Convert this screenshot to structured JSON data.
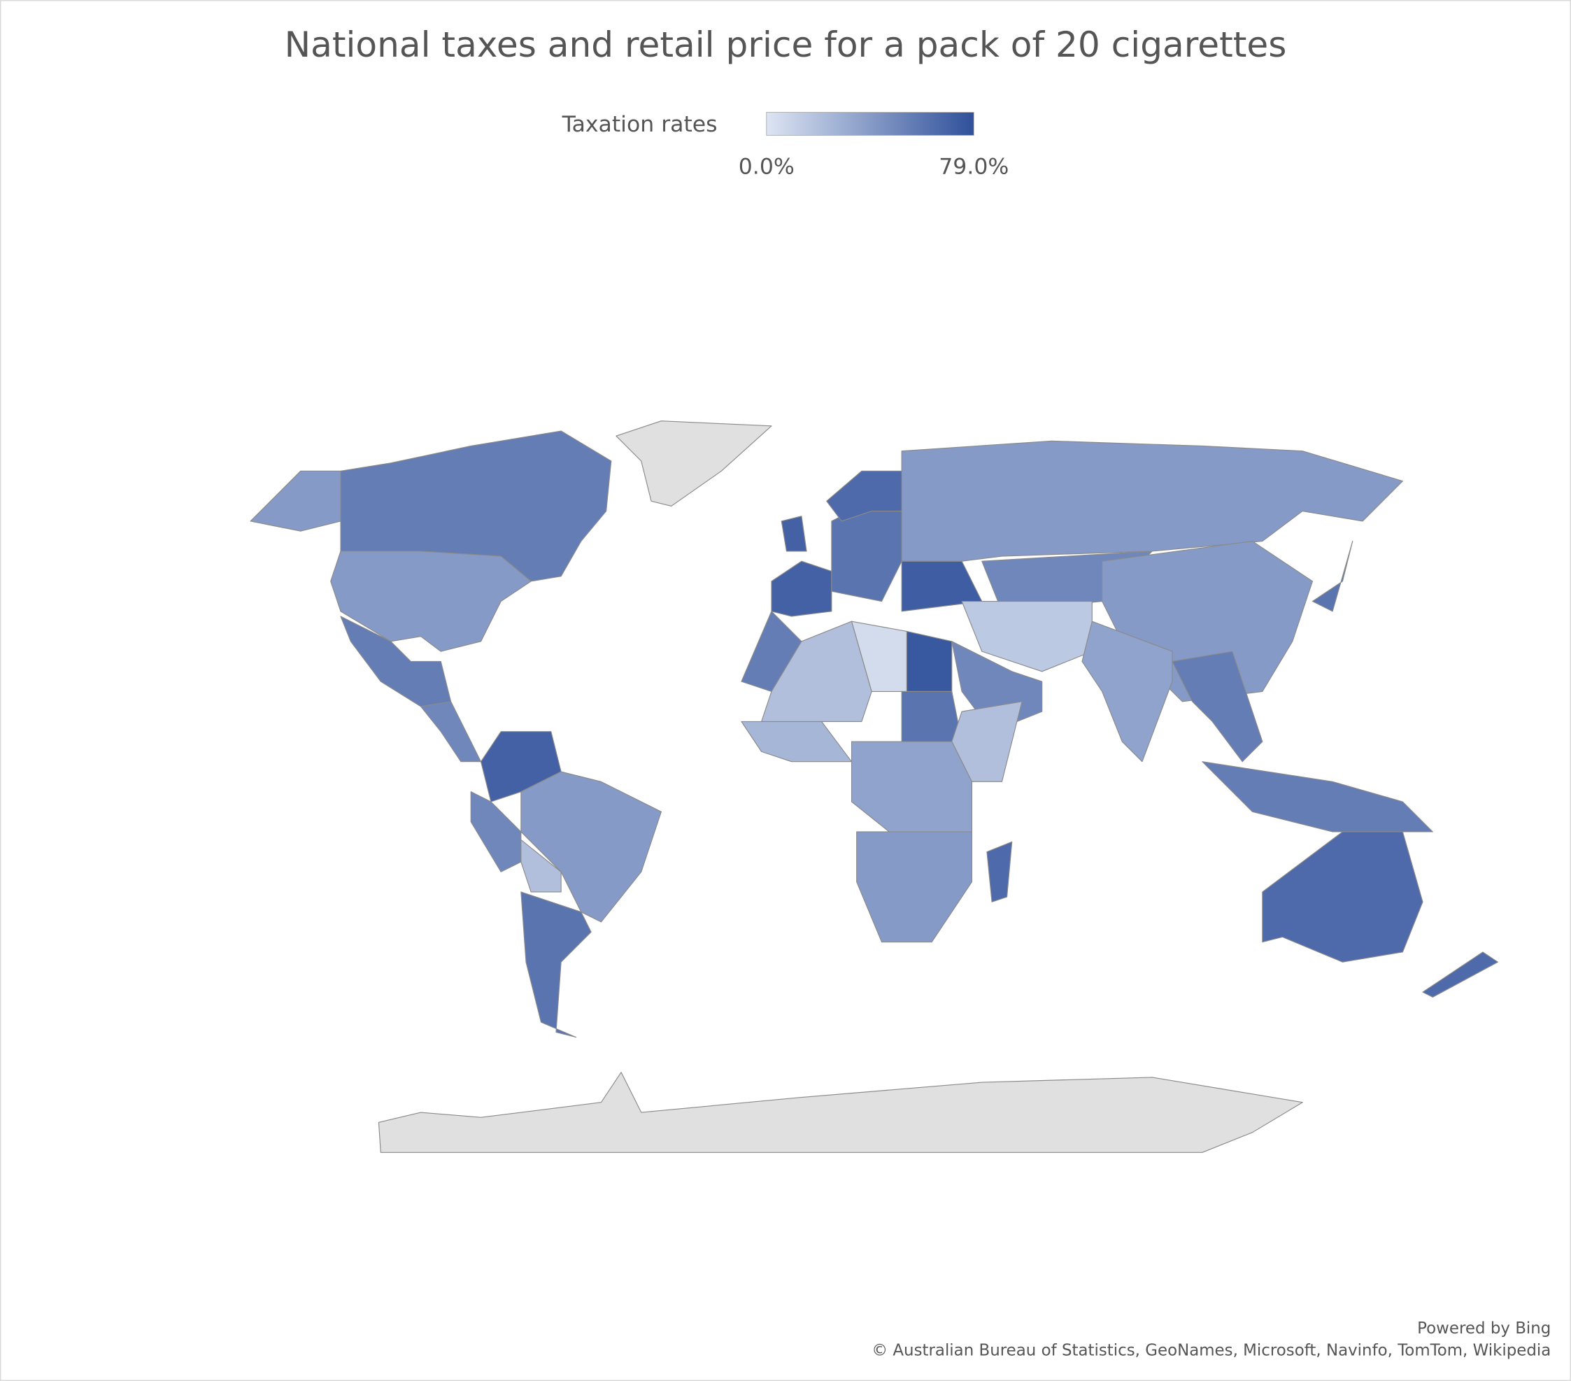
{
  "chart_data": {
    "type": "choropleth",
    "title": "National taxes and retail price for a pack of 20 cigarettes",
    "legend_title": "Taxation rates",
    "scale": [
      {
        "value": 0,
        "label": "0.0%"
      },
      {
        "value": 79,
        "label": "79.0%"
      }
    ],
    "colors": [
      "#dde5f3",
      "#2f509a"
    ],
    "no_data_color": "#e0e0e0",
    "values": [
      55,
      40,
      40,
      55,
      50,
      70,
      40,
      20,
      50,
      60,
      70,
      70,
      60,
      65,
      72,
      40,
      50,
      40,
      15,
      50,
      35,
      55,
      55,
      60,
      65,
      65,
      55,
      20,
      75,
      5,
      25,
      60,
      20,
      35,
      40,
      65
    ]
  },
  "credits": [
    "Powered by Bing",
    "© Australian Bureau of Statistics, GeoNames, Microsoft, Navinfo, TomTom, Wikipedia"
  ]
}
